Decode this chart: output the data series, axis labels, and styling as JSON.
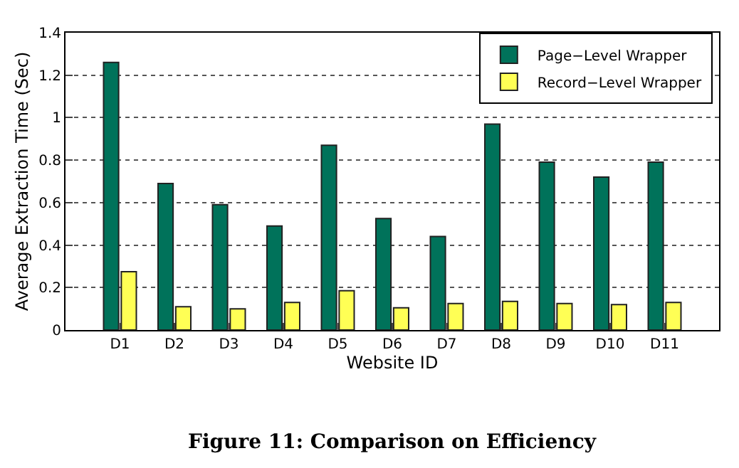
{
  "chart_data": {
    "type": "bar",
    "xlabel": "Website ID",
    "ylabel": "Average Extraction Time (Sec)",
    "categories": [
      "D1",
      "D2",
      "D3",
      "D4",
      "D5",
      "D6",
      "D7",
      "D8",
      "D9",
      "D10",
      "D11"
    ],
    "series": [
      {
        "name": "Page−Level Wrapper",
        "color": "#00725a",
        "values": [
          1.26,
          0.69,
          0.59,
          0.49,
          0.87,
          0.525,
          0.44,
          0.97,
          0.79,
          0.72,
          0.79
        ]
      },
      {
        "name": "Record−Level Wrapper",
        "color": "#ffff55",
        "values": [
          0.275,
          0.11,
          0.1,
          0.13,
          0.185,
          0.105,
          0.125,
          0.135,
          0.125,
          0.12,
          0.13
        ]
      }
    ],
    "ylim": [
      0,
      1.4
    ],
    "yticks": [
      0,
      0.2,
      0.4,
      0.6,
      0.8,
      1,
      1.2,
      1.4
    ],
    "grid": "y",
    "legend": "top right",
    "annotations": [
      "Figure 11: Comparison on Efficiency"
    ]
  }
}
